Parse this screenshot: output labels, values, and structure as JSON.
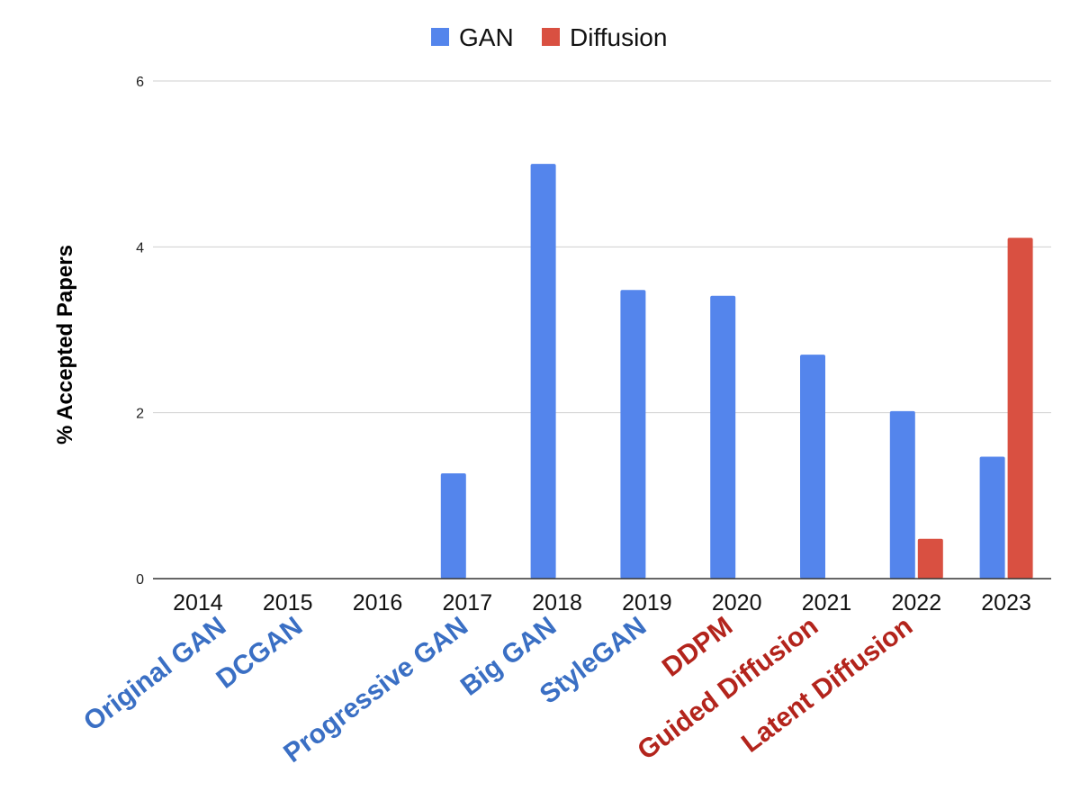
{
  "chart_data": {
    "type": "bar",
    "categories": [
      "2014",
      "2015",
      "2016",
      "2017",
      "2018",
      "2019",
      "2020",
      "2021",
      "2022",
      "2023"
    ],
    "series": [
      {
        "name": "GAN",
        "color": "#5485ec",
        "values": [
          0,
          0,
          0,
          1.27,
          5.0,
          3.48,
          3.41,
          2.7,
          2.02,
          1.47
        ]
      },
      {
        "name": "Diffusion",
        "color": "#d95041",
        "values": [
          0,
          0,
          0,
          0,
          0,
          0,
          0,
          0,
          0.48,
          4.11
        ]
      }
    ],
    "ylabel": "% Accepted Papers",
    "ylim": [
      0,
      6
    ],
    "yticks": [
      0,
      2,
      4,
      6
    ],
    "grid": true,
    "legend_position": "top-center",
    "annotations": [
      {
        "text": "Original GAN",
        "color": "#3a6fc4"
      },
      {
        "text": "DCGAN",
        "color": "#3a6fc4"
      },
      {
        "text": "Progressive GAN",
        "color": "#3a6fc4"
      },
      {
        "text": "Big GAN",
        "color": "#3a6fc4"
      },
      {
        "text": "StyleGAN",
        "color": "#3a6fc4"
      },
      {
        "text": "DDPM",
        "color": "#b3241c"
      },
      {
        "text": "Guided Diffusion",
        "color": "#b3241c"
      },
      {
        "text": "Latent Diffusion",
        "color": "#b3241c"
      }
    ]
  }
}
